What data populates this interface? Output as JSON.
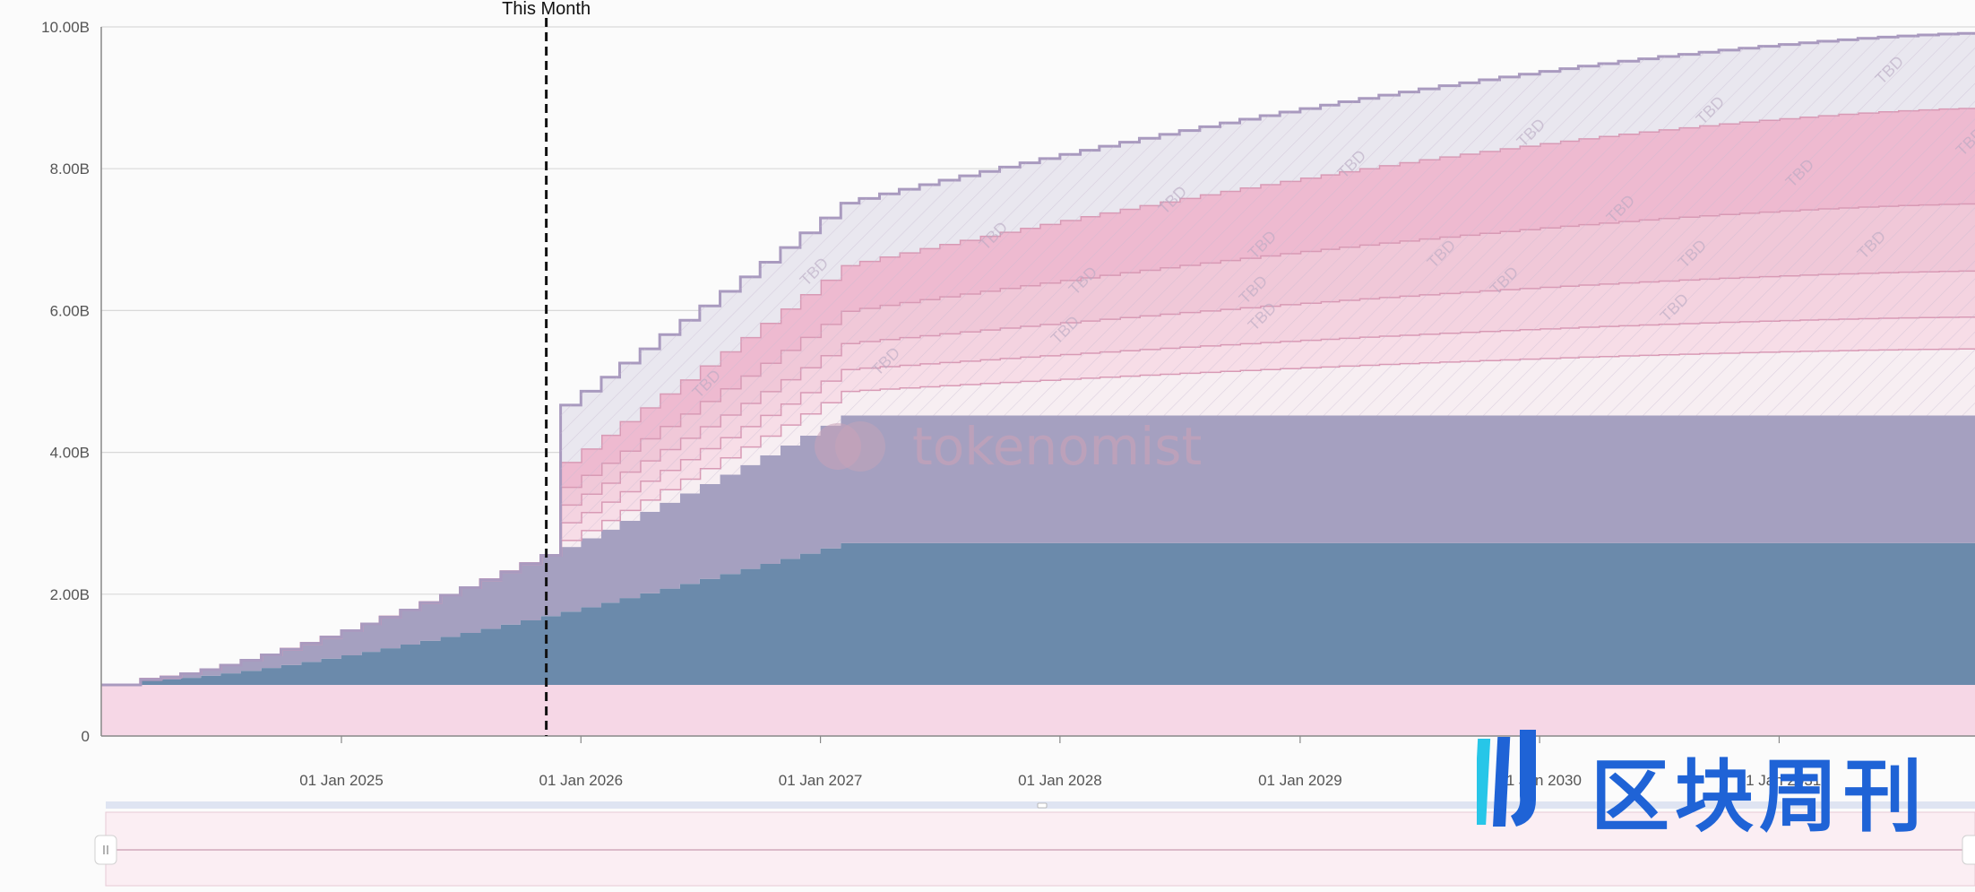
{
  "chart_data": {
    "type": "area",
    "title": "",
    "xlabel": "",
    "ylabel": "",
    "ylim": [
      0,
      10000000000
    ],
    "y_ticks": [
      "0",
      "2.00B",
      "4.00B",
      "6.00B",
      "8.00B",
      "10.00B"
    ],
    "x_ticks": [
      "01 Jan 2025",
      "01 Jan 2026",
      "01 Jan 2027",
      "01 Jan 2028",
      "01 Jan 2029",
      "01 Jan 2030",
      "01 Jan 2031"
    ],
    "x_range": [
      "2024-01",
      "2031-12"
    ],
    "stacked": true,
    "grid": true,
    "legend": "none",
    "marker": {
      "label": "This Month",
      "x": "2025-11"
    },
    "projected_label": "TBD",
    "series": [
      {
        "color": "#f6d7e6",
        "start": "2024-01",
        "values_monthly_end_B": 0.72,
        "note_shape": "flat"
      },
      {
        "color": "#6b8aab",
        "start": "2024-03",
        "start_value_B": 0.06,
        "end_month": "2027-02",
        "end_value_B": 2.0
      },
      {
        "color": "#a5a0c0",
        "start": "2024-03",
        "start_value_B": 0.02,
        "end_month": "2027-02",
        "end_value_B": 1.8
      },
      {
        "color": "#f7eef2",
        "start": "2025-12",
        "start_value_B": 0.1,
        "end_month": "2031-12",
        "end_value_B": 0.95,
        "projected": true
      },
      {
        "color": "#f7dde7",
        "start": "2025-12",
        "start_value_B": 0.25,
        "end_month": "2031-12",
        "end_value_B": 0.45,
        "projected": true
      },
      {
        "color": "#f4d3e0",
        "start": "2025-12",
        "start_value_B": 0.25,
        "end_month": "2031-12",
        "end_value_B": 0.65,
        "projected": true
      },
      {
        "color": "#f0c8d8",
        "start": "2025-12",
        "start_value_B": 0.25,
        "end_month": "2031-12",
        "end_value_B": 0.95,
        "projected": true
      },
      {
        "color": "#eebad0",
        "start": "2025-12",
        "start_value_B": 0.35,
        "end_month": "2031-12",
        "end_value_B": 1.35,
        "projected": true
      },
      {
        "color": "#e9e7ef",
        "start": "2025-12",
        "start_value_B": 0.8,
        "end_month": "2031-12",
        "end_value_B": 1.05,
        "projected": true
      }
    ],
    "navigator": true
  },
  "watermark": {
    "text": "tokenomist"
  },
  "brand": {
    "text": "区块周刊"
  },
  "colors": {
    "grid": "#d9d9d9",
    "axis": "#888888",
    "marker": "#111111"
  }
}
